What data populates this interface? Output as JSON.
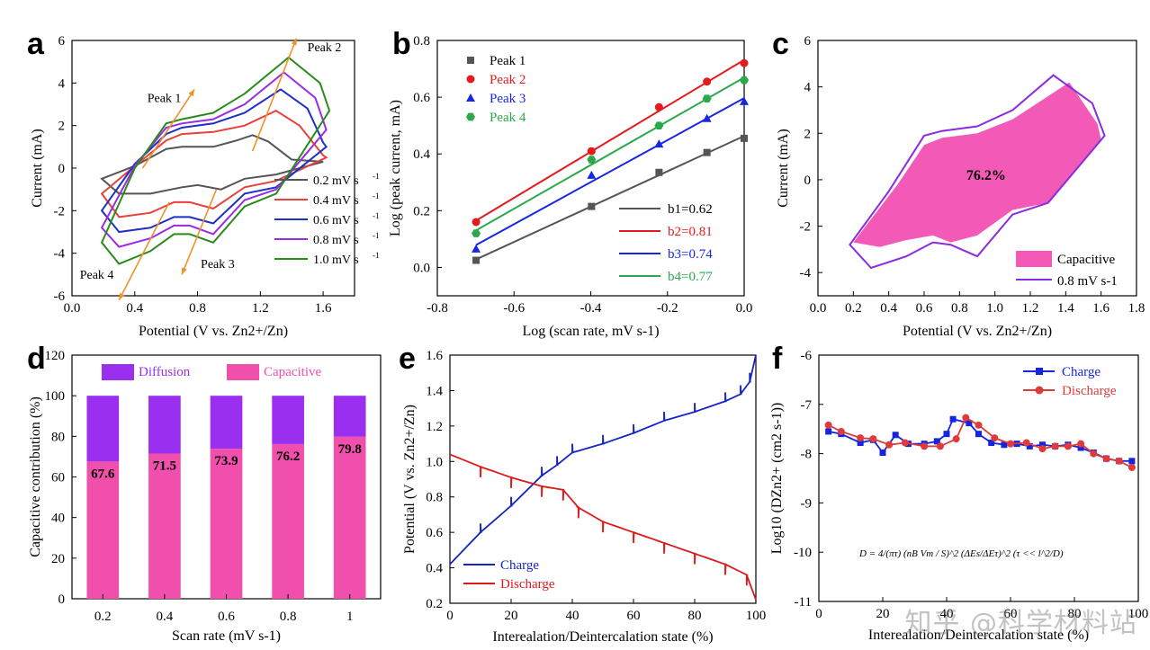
{
  "watermark": "知乎 @科学材料站",
  "chart_data": [
    {
      "panel": "a",
      "type": "line",
      "xlabel": "Potential (V vs. Zn2+/Zn)",
      "ylabel": "Current (mA)",
      "xlim": [
        0.0,
        1.8
      ],
      "ylim": [
        -6,
        6
      ],
      "xticks": [
        "0.0",
        "0.4",
        "0.8",
        "1.2",
        "1.6"
      ],
      "yticks": [
        "-6",
        "-4",
        "-2",
        "0",
        "2",
        "4",
        "6"
      ],
      "series": [
        {
          "name": "0.2 mV s-1",
          "color": "#555555",
          "upper": [
            [
              0.19,
              -0.5
            ],
            [
              0.4,
              0.1
            ],
            [
              0.6,
              0.9
            ],
            [
              0.7,
              1.0
            ],
            [
              0.9,
              1.0
            ],
            [
              1.05,
              1.3
            ],
            [
              1.15,
              1.55
            ],
            [
              1.25,
              1.25
            ],
            [
              1.4,
              0.4
            ],
            [
              1.6,
              0.3
            ]
          ],
          "lower": [
            [
              0.19,
              -0.5
            ],
            [
              0.3,
              -1.2
            ],
            [
              0.5,
              -1.2
            ],
            [
              0.7,
              -0.9
            ],
            [
              0.8,
              -0.8
            ],
            [
              0.95,
              -1.0
            ],
            [
              1.1,
              -0.5
            ],
            [
              1.3,
              -0.3
            ],
            [
              1.6,
              0.3
            ]
          ]
        },
        {
          "name": "0.4 mV s-1",
          "color": "#e8413c",
          "upper": [
            [
              0.19,
              -1.2
            ],
            [
              0.4,
              0.1
            ],
            [
              0.6,
              1.3
            ],
            [
              0.7,
              1.6
            ],
            [
              0.9,
              1.7
            ],
            [
              1.1,
              2.0
            ],
            [
              1.3,
              2.7
            ],
            [
              1.45,
              2.0
            ],
            [
              1.6,
              0.6
            ],
            [
              1.62,
              0.5
            ]
          ],
          "lower": [
            [
              0.19,
              -1.2
            ],
            [
              0.3,
              -2.3
            ],
            [
              0.5,
              -2.1
            ],
            [
              0.65,
              -1.6
            ],
            [
              0.75,
              -1.6
            ],
            [
              0.9,
              -1.9
            ],
            [
              1.1,
              -0.9
            ],
            [
              1.3,
              -0.6
            ],
            [
              1.62,
              0.5
            ]
          ]
        },
        {
          "name": "0.6 mV s-1",
          "color": "#1f2fc6",
          "upper": [
            [
              0.19,
              -2.0
            ],
            [
              0.4,
              0.2
            ],
            [
              0.6,
              1.6
            ],
            [
              0.7,
              1.9
            ],
            [
              0.9,
              2.1
            ],
            [
              1.1,
              2.6
            ],
            [
              1.33,
              3.7
            ],
            [
              1.5,
              2.8
            ],
            [
              1.6,
              1.2
            ],
            [
              1.62,
              1.0
            ]
          ],
          "lower": [
            [
              0.19,
              -2.0
            ],
            [
              0.3,
              -3.0
            ],
            [
              0.5,
              -2.8
            ],
            [
              0.65,
              -2.3
            ],
            [
              0.75,
              -2.3
            ],
            [
              0.9,
              -2.6
            ],
            [
              1.1,
              -1.2
            ],
            [
              1.3,
              -0.9
            ],
            [
              1.62,
              1.0
            ]
          ]
        },
        {
          "name": "0.8 mV s-1",
          "color": "#9a2be2",
          "upper": [
            [
              0.19,
              -2.8
            ],
            [
              0.4,
              0.1
            ],
            [
              0.6,
              1.9
            ],
            [
              0.7,
              2.1
            ],
            [
              0.9,
              2.3
            ],
            [
              1.1,
              3.0
            ],
            [
              1.35,
              4.5
            ],
            [
              1.55,
              3.3
            ],
            [
              1.62,
              1.8
            ]
          ],
          "lower": [
            [
              0.19,
              -2.8
            ],
            [
              0.3,
              -3.7
            ],
            [
              0.5,
              -3.3
            ],
            [
              0.65,
              -2.7
            ],
            [
              0.75,
              -2.7
            ],
            [
              0.9,
              -3.1
            ],
            [
              1.1,
              -1.5
            ],
            [
              1.3,
              -1.0
            ],
            [
              1.62,
              1.8
            ]
          ]
        },
        {
          "name": "1.0 mV s-1",
          "color": "#2a8a1a",
          "upper": [
            [
              0.19,
              -3.5
            ],
            [
              0.4,
              0.0
            ],
            [
              0.6,
              2.1
            ],
            [
              0.7,
              2.3
            ],
            [
              0.9,
              2.6
            ],
            [
              1.1,
              3.5
            ],
            [
              1.38,
              5.2
            ],
            [
              1.58,
              4.0
            ],
            [
              1.64,
              2.7
            ]
          ],
          "lower": [
            [
              0.19,
              -3.5
            ],
            [
              0.3,
              -4.5
            ],
            [
              0.5,
              -3.9
            ],
            [
              0.65,
              -3.1
            ],
            [
              0.75,
              -3.1
            ],
            [
              0.9,
              -3.5
            ],
            [
              1.1,
              -1.8
            ],
            [
              1.3,
              -1.2
            ],
            [
              1.64,
              2.7
            ]
          ]
        }
      ],
      "annotations": [
        "Peak 1",
        "Peak 2",
        "Peak 3",
        "Peak 4"
      ]
    },
    {
      "panel": "b",
      "type": "scatter",
      "xlabel": "Log (scan rate, mV s-1)",
      "ylabel": "Log (peak current, mA)",
      "xlim": [
        -0.8,
        0.0
      ],
      "ylim": [
        -0.1,
        0.8
      ],
      "xticks": [
        "-0.8",
        "-0.6",
        "-0.4",
        "-0.2",
        "0.0"
      ],
      "yticks": [
        "0.0",
        "0.2",
        "0.4",
        "0.6",
        "0.8"
      ],
      "x": [
        -0.699,
        -0.398,
        -0.222,
        -0.097,
        0.0
      ],
      "series": [
        {
          "name": "Peak 1",
          "color": "#555555",
          "marker": "square",
          "values": [
            0.025,
            0.215,
            0.335,
            0.405,
            0.455
          ],
          "fit": "b1=0.62"
        },
        {
          "name": "Peak 2",
          "color": "#e41a1c",
          "marker": "circle",
          "values": [
            0.16,
            0.41,
            0.565,
            0.655,
            0.72
          ],
          "fit": "b2=0.81"
        },
        {
          "name": "Peak 3",
          "color": "#1726e6",
          "marker": "triangle",
          "values": [
            0.065,
            0.325,
            0.435,
            0.525,
            0.585
          ],
          "fit": "b3=0.74"
        },
        {
          "name": "Peak 4",
          "color": "#2aa84a",
          "marker": "hexagon",
          "values": [
            0.12,
            0.38,
            0.5,
            0.595,
            0.66
          ],
          "fit": "b4=0.77"
        }
      ]
    },
    {
      "panel": "c",
      "type": "area",
      "xlabel": "Potential (V vs. Zn2+/Zn)",
      "ylabel": "Current (mA)",
      "xlim": [
        0.0,
        1.8
      ],
      "ylim": [
        -5,
        6
      ],
      "xticks": [
        "0.0",
        "0.2",
        "0.4",
        "0.6",
        "0.8",
        "1.0",
        "1.2",
        "1.4",
        "1.6",
        "1.8"
      ],
      "yticks": [
        "-4",
        "-2",
        "0",
        "2",
        "4",
        "6"
      ],
      "capacitive_percent": "76.2%",
      "legend": [
        "Capacitive",
        "0.8 mV s-1"
      ],
      "cv_upper": [
        [
          0.18,
          -2.8
        ],
        [
          0.4,
          -0.5
        ],
        [
          0.6,
          1.9
        ],
        [
          0.7,
          2.1
        ],
        [
          0.9,
          2.3
        ],
        [
          1.1,
          3.0
        ],
        [
          1.33,
          4.5
        ],
        [
          1.55,
          3.3
        ],
        [
          1.62,
          1.9
        ]
      ],
      "cv_lower": [
        [
          0.18,
          -2.8
        ],
        [
          0.3,
          -3.8
        ],
        [
          0.5,
          -3.3
        ],
        [
          0.65,
          -2.7
        ],
        [
          0.75,
          -2.8
        ],
        [
          0.9,
          -3.3
        ],
        [
          1.1,
          -1.5
        ],
        [
          1.3,
          -1.0
        ],
        [
          1.62,
          1.9
        ]
      ],
      "cap_upper": [
        [
          0.2,
          -2.7
        ],
        [
          0.45,
          -0.2
        ],
        [
          0.6,
          1.5
        ],
        [
          0.7,
          1.8
        ],
        [
          0.9,
          2.0
        ],
        [
          1.1,
          2.6
        ],
        [
          1.42,
          4.2
        ],
        [
          1.58,
          2.4
        ],
        [
          1.6,
          1.7
        ]
      ],
      "cap_lower": [
        [
          0.2,
          -2.7
        ],
        [
          0.35,
          -2.9
        ],
        [
          0.5,
          -2.6
        ],
        [
          0.65,
          -2.4
        ],
        [
          0.75,
          -2.7
        ],
        [
          0.9,
          -2.4
        ],
        [
          1.1,
          -1.3
        ],
        [
          1.3,
          -1.0
        ],
        [
          1.6,
          1.7
        ]
      ]
    },
    {
      "panel": "d",
      "type": "bar",
      "xlabel": "Scan rate (mV s-1)",
      "ylabel": "Capacitive contribution (%)",
      "categories": [
        "0.2",
        "0.4",
        "0.6",
        "0.8",
        "1"
      ],
      "ylim": [
        0,
        120
      ],
      "yticks": [
        "0",
        "20",
        "40",
        "60",
        "80",
        "100",
        "120"
      ],
      "series": [
        {
          "name": "Capacitive",
          "color": "#f04fac",
          "values": [
            67.6,
            71.5,
            73.9,
            76.2,
            79.8
          ]
        },
        {
          "name": "Diffusion",
          "color": "#9b2ff0",
          "values": [
            32.4,
            28.5,
            26.1,
            23.8,
            20.2
          ]
        }
      ],
      "labels": [
        "67.6",
        "71.5",
        "73.9",
        "76.2",
        "79.8"
      ]
    },
    {
      "panel": "e",
      "type": "line",
      "xlabel": "Interealation/Deintercalation state (%)",
      "ylabel": "Potential (V vs. Zn2+/Zn)",
      "xlim": [
        0,
        100
      ],
      "ylim": [
        0.2,
        1.6
      ],
      "xticks": [
        "0",
        "20",
        "40",
        "60",
        "80",
        "100"
      ],
      "yticks": [
        "0.2",
        "0.4",
        "0.6",
        "0.8",
        "1.0",
        "1.2",
        "1.4",
        "1.6"
      ],
      "series": [
        {
          "name": "Charge",
          "color": "#1524c4",
          "values": [
            [
              0,
              0.42
            ],
            [
              10,
              0.6
            ],
            [
              20,
              0.75
            ],
            [
              30,
              0.92
            ],
            [
              35,
              0.98
            ],
            [
              40,
              1.05
            ],
            [
              50,
              1.1
            ],
            [
              60,
              1.16
            ],
            [
              70,
              1.23
            ],
            [
              80,
              1.28
            ],
            [
              90,
              1.34
            ],
            [
              95,
              1.38
            ],
            [
              98,
              1.45
            ],
            [
              100,
              1.6
            ]
          ]
        },
        {
          "name": "Discharge",
          "color": "#dc1a1a",
          "values": [
            [
              0,
              1.04
            ],
            [
              10,
              0.97
            ],
            [
              20,
              0.91
            ],
            [
              30,
              0.86
            ],
            [
              37,
              0.84
            ],
            [
              42,
              0.74
            ],
            [
              50,
              0.66
            ],
            [
              60,
              0.6
            ],
            [
              70,
              0.54
            ],
            [
              80,
              0.48
            ],
            [
              90,
              0.42
            ],
            [
              97,
              0.36
            ],
            [
              100,
              0.22
            ]
          ]
        }
      ]
    },
    {
      "panel": "f",
      "type": "line",
      "xlabel": "Interealation/Deintercalation state (%)",
      "ylabel": "Log10 (DZn2+ (cm2 s-1))",
      "xlim": [
        0,
        100
      ],
      "ylim": [
        -11,
        -6
      ],
      "xticks": [
        "0",
        "20",
        "40",
        "60",
        "80",
        "100"
      ],
      "yticks": [
        "-6",
        "-7",
        "-8",
        "-9",
        "-10",
        "-11"
      ],
      "formula": "D = 4/(πτ) (nB Vm / S)^2 (ΔEs/ΔEτ)^2 (τ << l^2/D)",
      "series": [
        {
          "name": "Charge",
          "color": "#1524e0",
          "values": [
            [
              3,
              -7.55
            ],
            [
              7,
              -7.6
            ],
            [
              13,
              -7.78
            ],
            [
              17,
              -7.72
            ],
            [
              20,
              -7.98
            ],
            [
              24,
              -7.62
            ],
            [
              28,
              -7.8
            ],
            [
              33,
              -7.8
            ],
            [
              37,
              -7.75
            ],
            [
              40,
              -7.6
            ],
            [
              42,
              -7.3
            ],
            [
              47,
              -7.38
            ],
            [
              50,
              -7.6
            ],
            [
              54,
              -7.78
            ],
            [
              58,
              -7.82
            ],
            [
              62,
              -7.8
            ],
            [
              66,
              -7.85
            ],
            [
              70,
              -7.82
            ],
            [
              74,
              -7.85
            ],
            [
              78,
              -7.82
            ],
            [
              82,
              -7.88
            ],
            [
              86,
              -7.98
            ],
            [
              90,
              -8.1
            ],
            [
              94,
              -8.15
            ],
            [
              98,
              -8.15
            ]
          ]
        },
        {
          "name": "Discharge",
          "color": "#e03a3a",
          "values": [
            [
              3,
              -7.42
            ],
            [
              7,
              -7.55
            ],
            [
              13,
              -7.68
            ],
            [
              17,
              -7.7
            ],
            [
              22,
              -7.82
            ],
            [
              27,
              -7.78
            ],
            [
              33,
              -7.85
            ],
            [
              38,
              -7.85
            ],
            [
              43,
              -7.7
            ],
            [
              46,
              -7.27
            ],
            [
              50,
              -7.42
            ],
            [
              55,
              -7.68
            ],
            [
              60,
              -7.8
            ],
            [
              65,
              -7.78
            ],
            [
              70,
              -7.9
            ],
            [
              74,
              -7.85
            ],
            [
              78,
              -7.85
            ],
            [
              82,
              -7.8
            ],
            [
              86,
              -8.0
            ],
            [
              90,
              -8.1
            ],
            [
              94,
              -8.15
            ],
            [
              98,
              -8.28
            ]
          ]
        }
      ]
    }
  ]
}
